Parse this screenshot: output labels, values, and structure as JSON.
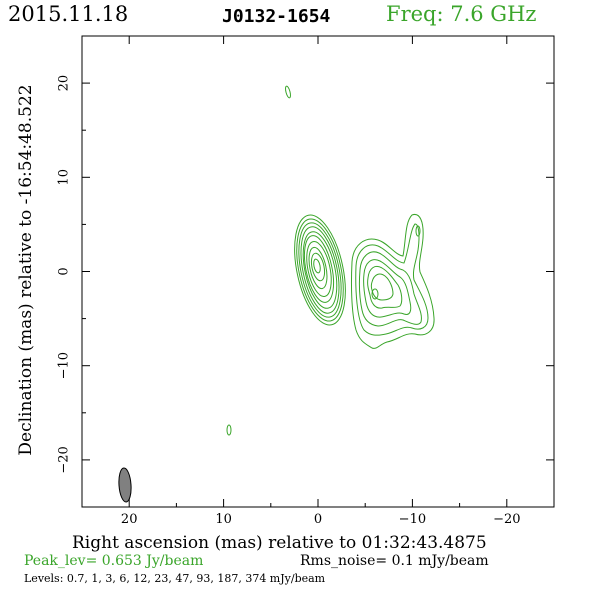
{
  "header": {
    "date": "2015.11.18",
    "source": "J0132-1654",
    "frequency": "Freq: 7.6 GHz"
  },
  "axes": {
    "xlabel": "Right ascension (mas) relative to 01:32:43.4875",
    "ylabel": "Declination (mas) relative to -16:54:48.522",
    "x_ticks": [
      "20",
      "10",
      "0",
      "−10",
      "−20"
    ],
    "y_ticks": [
      "20",
      "10",
      "0",
      "−10",
      "−20"
    ],
    "xlim": [
      25,
      -25
    ],
    "ylim": [
      -25,
      25
    ]
  },
  "footer": {
    "peak": "Peak_lev=  0.653 Jy/beam",
    "rms": "Rms_noise=  0.1 mJy/beam",
    "levels": "Levels: 0.7,   1,   3,   6,  12,  23,  47,  93, 187, 374 mJy/beam"
  },
  "colors": {
    "contour": "#3aa52a",
    "beam_fill": "#808080",
    "axes": "#000000"
  }
}
